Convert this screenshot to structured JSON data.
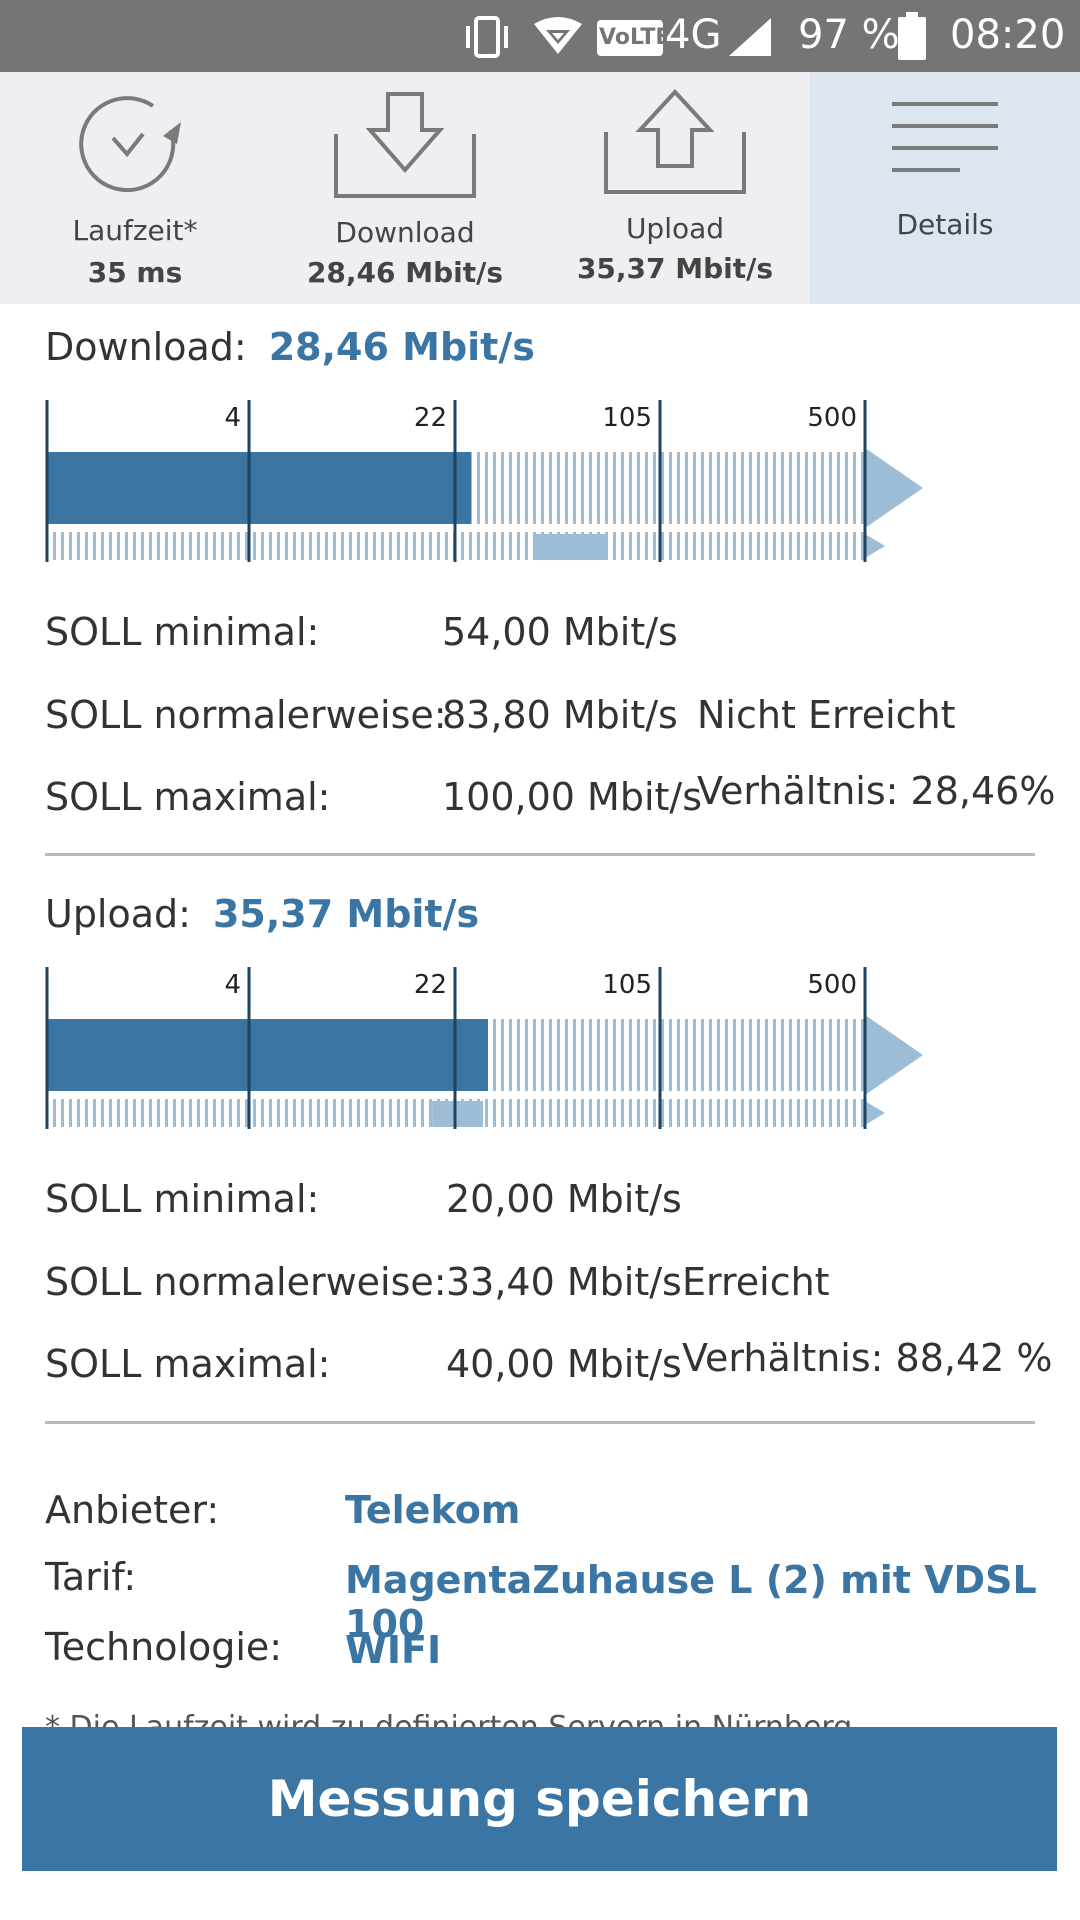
{
  "status_bar": {
    "volte": "VoLTE",
    "network": "4G",
    "battery": "97 %",
    "time": "08:20"
  },
  "tabs": [
    {
      "label": "Laufzeit*",
      "value": "35 ms",
      "icon": "stopwatch-icon"
    },
    {
      "label": "Download",
      "value": "28,46 Mbit/s",
      "icon": "download-icon"
    },
    {
      "label": "Upload",
      "value": "35,37 Mbit/s",
      "icon": "upload-icon"
    },
    {
      "label": "Details",
      "value": "",
      "icon": "menu-lines-icon"
    }
  ],
  "scale_ticks": [
    "4",
    "22",
    "105",
    "500"
  ],
  "download": {
    "label": "Download:",
    "value": "28,46 Mbit/s",
    "measured": 28.46,
    "soll_min_value": 54.0,
    "soll_normal_value": 83.8,
    "soll": [
      {
        "label": "SOLL minimal:",
        "value": "54,00 Mbit/s",
        "extra": ""
      },
      {
        "label": "SOLL normalerweise:",
        "value": "83,80 Mbit/s",
        "extra": "Nicht Erreicht"
      },
      {
        "label": "SOLL maximal:",
        "value": "100,00 Mbit/s",
        "extra": "Verhältnis: 28,46%"
      }
    ]
  },
  "upload": {
    "label": "Upload:",
    "value": "35,37 Mbit/s",
    "measured": 35.37,
    "soll_min_value": 20.0,
    "soll_normal_value": 33.4,
    "soll": [
      {
        "label": "SOLL minimal:",
        "value": "20,00 Mbit/s",
        "extra": ""
      },
      {
        "label": "SOLL normalerweise:",
        "value": "33,40 Mbit/s",
        "extra": "Erreicht"
      },
      {
        "label": "SOLL maximal:",
        "value": "40,00 Mbit/s",
        "extra": "Verhältnis: 88,42 %"
      }
    ]
  },
  "info": [
    {
      "label": "Anbieter:",
      "value": "Telekom"
    },
    {
      "label": "Tarif:",
      "value": "MagentaZuhause L (2) mit VDSL 100"
    },
    {
      "label": "Technologie:",
      "value": "WIFI"
    }
  ],
  "footnote": "* Die Laufzeit wird zu definierten Servern in Nürnberg",
  "save_button": "Messung speichern",
  "colors": {
    "accent": "#3a75a3",
    "accent_light": "#9dbcd5",
    "status_bar": "#757575"
  }
}
